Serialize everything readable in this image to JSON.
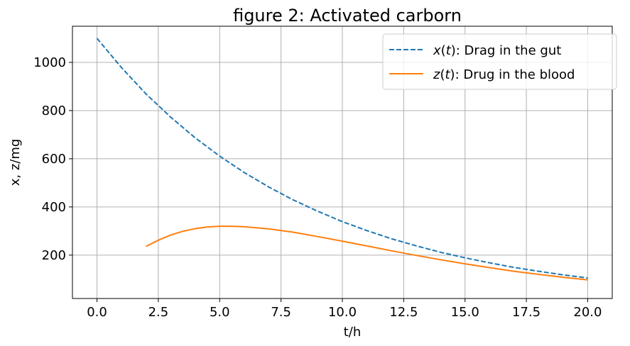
{
  "chart_data": {
    "type": "line",
    "title": "figure 2: Activated carborn",
    "xlabel": "t/h",
    "ylabel": "x, z/mg",
    "xlim": [
      -1.0,
      21.0
    ],
    "ylim": [
      20,
      1150
    ],
    "xticks": [
      0.0,
      2.5,
      5.0,
      7.5,
      10.0,
      12.5,
      15.0,
      17.5,
      20.0
    ],
    "xtick_labels": [
      "0.0",
      "2.5",
      "5.0",
      "7.5",
      "10.0",
      "12.5",
      "15.0",
      "17.5",
      "20.0"
    ],
    "yticks": [
      200,
      400,
      600,
      800,
      1000
    ],
    "ytick_labels": [
      "200",
      "400",
      "600",
      "800",
      "1000"
    ],
    "grid": true,
    "legend_position": "top-right",
    "series": [
      {
        "name": "x(t): Drag in the gut",
        "legend_var": "x",
        "legend_rest": ": Drag in the gut",
        "color": "#1f77b4",
        "style": "dashed",
        "x": [
          0,
          1,
          2,
          3,
          4,
          5,
          6,
          7,
          8,
          9,
          10,
          11,
          12,
          13,
          14,
          15,
          16,
          17,
          18,
          19,
          20
        ],
        "y": [
          1100,
          978,
          869,
          773,
          687,
          611,
          543,
          483,
          429,
          382,
          339,
          302,
          268,
          239,
          212,
          189,
          168,
          149,
          133,
          118,
          105
        ]
      },
      {
        "name": "z(t): Drug in the blood",
        "legend_var": "z",
        "legend_rest": ": Drug in the blood",
        "color": "#ff7f0e",
        "style": "solid",
        "x": [
          2,
          2.5,
          3,
          3.5,
          4,
          4.5,
          5,
          5.5,
          6,
          7,
          8,
          9,
          10,
          11,
          12,
          13,
          14,
          15,
          16,
          17,
          18,
          19,
          20
        ],
        "y": [
          236,
          262,
          283,
          299,
          310,
          317,
          320,
          320,
          318,
          309,
          295,
          277,
          258,
          238,
          218,
          199,
          181,
          164,
          148,
          133,
          120,
          108,
          97
        ]
      }
    ]
  }
}
